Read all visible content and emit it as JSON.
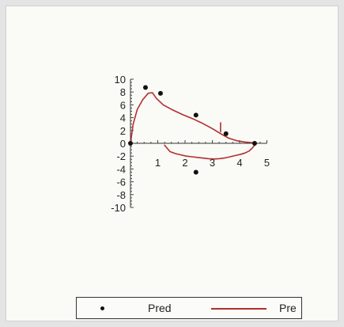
{
  "chart_data": {
    "type": "scatter",
    "title": "",
    "xlabel": "",
    "ylabel": "",
    "xlim": [
      0,
      5
    ],
    "ylim": [
      -10,
      10
    ],
    "xticks": [
      1,
      2,
      3,
      4,
      5
    ],
    "yticks": [
      10,
      8,
      6,
      4,
      2,
      0,
      -2,
      -4,
      -6,
      -8,
      -10
    ],
    "grid": false,
    "legend_position": "bottom",
    "series": [
      {
        "name": "Pred",
        "kind": "points",
        "color": "#111111",
        "x": [
          0.0,
          0.55,
          1.1,
          2.4,
          3.5,
          4.55,
          2.4
        ],
        "y": [
          0.0,
          8.7,
          7.8,
          4.4,
          1.5,
          0.0,
          -4.5
        ]
      },
      {
        "name": "Pre",
        "kind": "line",
        "color": "#b03030",
        "x": [
          0.0,
          0.1,
          0.25,
          0.45,
          0.65,
          0.8,
          0.95,
          1.2,
          1.5,
          1.9,
          2.3,
          2.6,
          3.0,
          3.3,
          3.6,
          3.9,
          4.2,
          4.45,
          4.6
        ],
        "y": [
          0.0,
          3.0,
          5.3,
          6.8,
          7.8,
          7.9,
          7.0,
          6.0,
          5.3,
          4.5,
          3.8,
          3.2,
          2.3,
          1.5,
          0.8,
          0.4,
          0.2,
          0.1,
          0.0
        ],
        "x2": [
          1.25,
          1.45,
          1.65,
          1.85,
          2.05,
          2.25,
          2.45,
          2.65,
          2.85,
          3.05,
          3.25,
          3.45,
          3.65,
          3.85,
          4.05,
          4.2,
          4.35,
          4.45,
          4.55,
          4.6
        ],
        "y2": [
          -0.3,
          -1.3,
          -1.6,
          -1.8,
          -2.0,
          -2.1,
          -2.2,
          -2.3,
          -2.4,
          -2.45,
          -2.4,
          -2.3,
          -2.1,
          -1.9,
          -1.7,
          -1.5,
          -1.2,
          -0.8,
          -0.3,
          0.0
        ],
        "x3": [
          3.3,
          3.3
        ],
        "y3": [
          3.2,
          1.8
        ]
      }
    ]
  },
  "legend": {
    "items": [
      "Pred",
      "Pre"
    ]
  }
}
